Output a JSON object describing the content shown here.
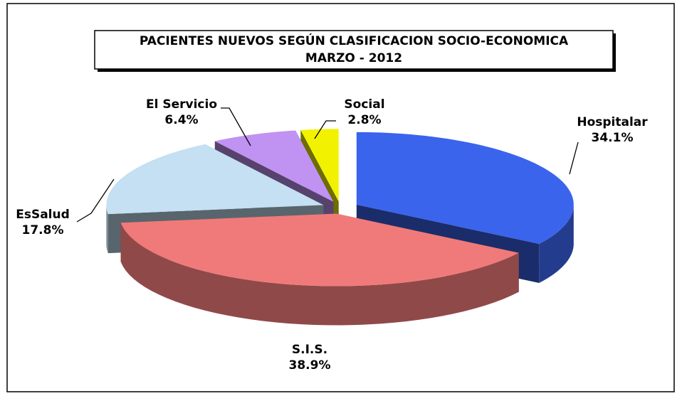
{
  "chart_data": {
    "type": "pie3d",
    "title": "PACIENTES NUEVOS SEGÚN CLASIFICACION SOCIO-ECONOMICA",
    "subtitle": "MARZO - 2012",
    "categories": [
      "Hospitalar",
      "S.I.S.",
      "EsSalud",
      "El Servicio",
      "Social"
    ],
    "values": [
      34.1,
      38.9,
      17.8,
      6.4,
      2.8
    ],
    "value_labels": [
      "34.1%",
      "38.9%",
      "17.8%",
      "6.4%",
      "2.8%"
    ],
    "colors": [
      "#3a64ec",
      "#f07a7a",
      "#c4e0f2",
      "#c092f2",
      "#f2f200"
    ]
  }
}
